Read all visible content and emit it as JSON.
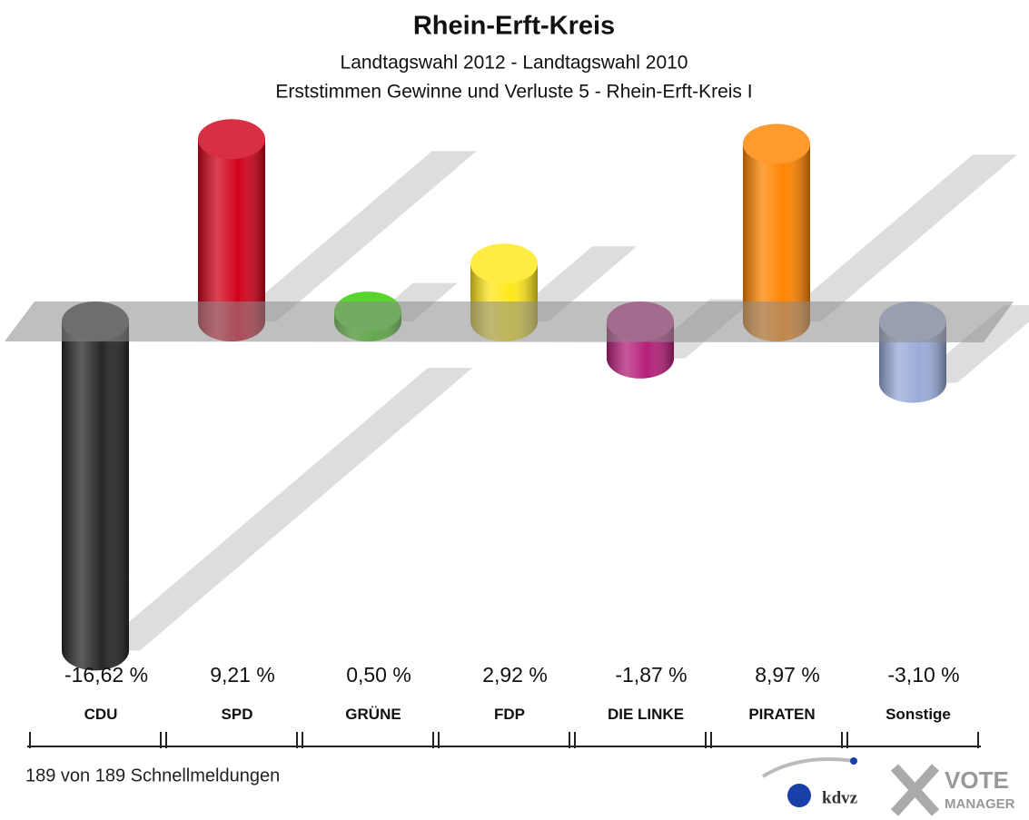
{
  "chart_data": {
    "type": "bar",
    "title": "Rhein-Erft-Kreis",
    "subtitle": "Landtagswahl 2012 - Landtagswahl 2010",
    "subtitle2": "Erststimmen Gewinne und Verluste 5 - Rhein-Erft-Kreis I",
    "categories": [
      "CDU",
      "SPD",
      "GRÜNE",
      "FDP",
      "DIE LINKE",
      "PIRATEN",
      "Sonstige"
    ],
    "values": [
      -16.62,
      9.21,
      0.5,
      2.92,
      -1.87,
      8.97,
      -3.1
    ],
    "value_labels": [
      "-16,62 %",
      "9,21 %",
      "0,50 %",
      "2,92 %",
      "-1,87 %",
      "8,97 %",
      "-3,10 %"
    ],
    "colors": [
      "#262626",
      "#d0021b",
      "#33cc00",
      "#ffe81a",
      "#b5207a",
      "#ff8400",
      "#9aaad8"
    ],
    "footer": "189 von 189 Schnellmeldungen",
    "logo": {
      "kdvz": "kdvz",
      "vote": "VOTE",
      "manager": "MANAGER"
    }
  }
}
